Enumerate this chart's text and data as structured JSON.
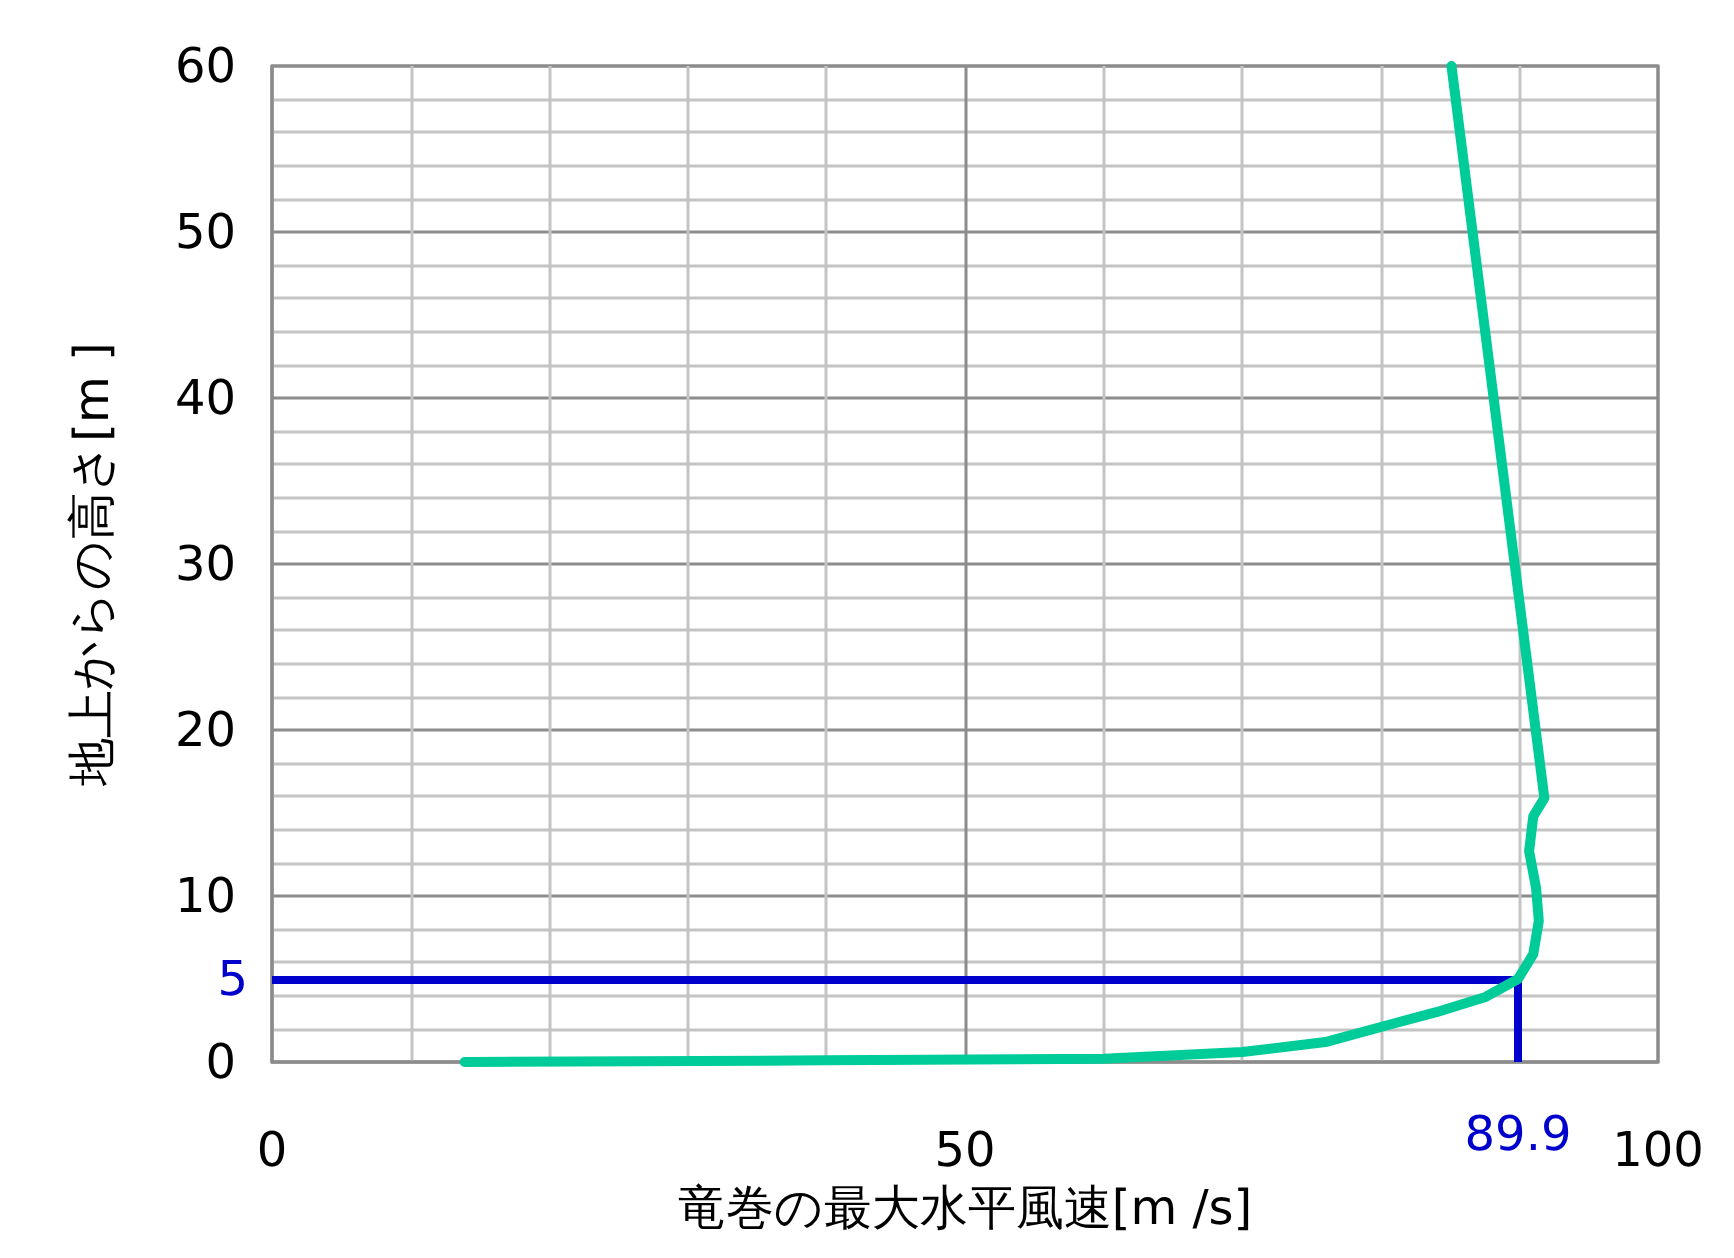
{
  "chart_data": {
    "type": "line",
    "xlabel": "竜巻の最大水平風速[m /s]",
    "ylabel": "地上からの高さ[m ]",
    "xlim": [
      0,
      100
    ],
    "xticks": [
      0,
      {
        "value": 10,
        "label": null
      },
      {
        "value": 20,
        "label": null
      },
      {
        "value": 30,
        "label": null
      },
      {
        "value": 40,
        "label": null
      },
      50,
      {
        "value": 60,
        "label": null
      },
      {
        "value": 70,
        "label": null
      },
      {
        "value": 80,
        "label": null
      },
      {
        "value": 90,
        "label": null
      },
      100
    ],
    "ylim": [
      0,
      60
    ],
    "yticks": [
      0,
      {
        "value": 2,
        "label": null
      },
      {
        "value": 4,
        "label": null
      },
      {
        "value": 6,
        "label": null
      },
      {
        "value": 8,
        "label": null
      },
      10,
      {
        "value": 12,
        "label": null
      },
      {
        "value": 14,
        "label": null
      },
      {
        "value": 16,
        "label": null
      },
      {
        "value": 18,
        "label": null
      },
      20,
      {
        "value": 22,
        "label": null
      },
      {
        "value": 24,
        "label": null
      },
      {
        "value": 26,
        "label": null
      },
      {
        "value": 28,
        "label": null
      },
      30,
      {
        "value": 32,
        "label": null
      },
      {
        "value": 34,
        "label": null
      },
      {
        "value": 36,
        "label": null
      },
      {
        "value": 38,
        "label": null
      },
      40,
      {
        "value": 42,
        "label": null
      },
      {
        "value": 44,
        "label": null
      },
      {
        "value": 46,
        "label": null
      },
      {
        "value": 48,
        "label": null
      },
      50,
      {
        "value": 52,
        "label": null
      },
      {
        "value": 54,
        "label": null
      },
      {
        "value": 56,
        "label": null
      },
      {
        "value": 58,
        "label": null
      },
      60
    ],
    "grid": true,
    "marker": "none",
    "line_style": "solid",
    "series": [
      {
        "color": "#00cc99",
        "x": [
          13.9,
          40,
          60,
          70,
          76,
          80.4,
          84,
          87.5,
          89.9,
          91,
          91.4,
          91.2,
          90.7,
          91,
          91.8,
          85.1
        ],
        "values": [
          0,
          0.1,
          0.2,
          0.6,
          1.2,
          2.2,
          3,
          3.9,
          5,
          6.5,
          8.5,
          10.5,
          12.7,
          14.8,
          15.9,
          60
        ]
      }
    ],
    "ref_lines": [
      {
        "axis": "y",
        "value": 5,
        "label": "5",
        "color": "#0000cc"
      },
      {
        "axis": "x",
        "value": 89.9,
        "label": "89.9",
        "color": "#0000cc"
      }
    ]
  }
}
